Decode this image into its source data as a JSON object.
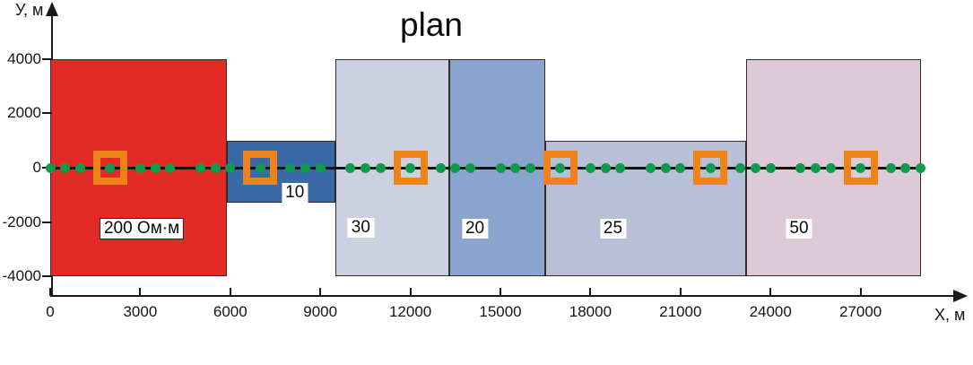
{
  "figure": {
    "title": "plan"
  },
  "chart_data": {
    "type": "zone-plan",
    "title": "plan",
    "xlabel": "X, м",
    "ylabel": "У, м",
    "xlim": [
      0,
      29500
    ],
    "ylim": [
      -4000,
      4000
    ],
    "grid": false,
    "x_ticks": [
      0,
      3000,
      6000,
      9000,
      12000,
      15000,
      18000,
      21000,
      24000,
      27000
    ],
    "y_ticks": [
      4000,
      2000,
      0,
      -2000,
      -4000
    ],
    "zones": [
      {
        "label": "200 Ом·м",
        "resistivity_ohm_m": 200,
        "x_range_m": [
          0,
          5900
        ],
        "y_range_m": [
          -4000,
          4000
        ],
        "color": "#e22b26",
        "label_x_m": 3050,
        "label_y_m": -2250,
        "label_border": true
      },
      {
        "label": "10",
        "resistivity_ohm_m": 10,
        "x_range_m": [
          5900,
          9500
        ],
        "y_range_m": [
          -1300,
          1000
        ],
        "color": "#3a69a7",
        "label_x_m": 8150,
        "label_y_m": -920,
        "label_border": false
      },
      {
        "label": "30",
        "resistivity_ohm_m": 30,
        "x_range_m": [
          9500,
          13300
        ],
        "y_range_m": [
          -4000,
          4000
        ],
        "color": "#cbd1e0",
        "label_x_m": 10350,
        "label_y_m": -2200,
        "label_border": false
      },
      {
        "label": "20",
        "resistivity_ohm_m": 20,
        "x_range_m": [
          13300,
          16500
        ],
        "y_range_m": [
          -4000,
          4000
        ],
        "color": "#8ba3cf",
        "label_x_m": 14150,
        "label_y_m": -2250,
        "label_border": false
      },
      {
        "label": "25",
        "resistivity_ohm_m": 25,
        "x_range_m": [
          16500,
          23200
        ],
        "y_range_m": [
          -4000,
          1000
        ],
        "color": "#b7c0d6",
        "label_x_m": 18750,
        "label_y_m": -2250,
        "label_border": false
      },
      {
        "label": "50",
        "resistivity_ohm_m": 50,
        "x_range_m": [
          23200,
          29000
        ],
        "y_range_m": [
          -4000,
          4000
        ],
        "color": "#ddcad7",
        "label_x_m": 24950,
        "label_y_m": -2250,
        "label_border": false
      }
    ],
    "profile_line": {
      "y_m": 0,
      "x_start_m": 0,
      "x_end_m": 29000
    },
    "station_dots_x_m": [
      0,
      500,
      1000,
      2000,
      3000,
      3500,
      4000,
      5000,
      5500,
      6000,
      7000,
      8000,
      8500,
      9000,
      10000,
      10500,
      11000,
      12000,
      13000,
      13500,
      14000,
      15000,
      15500,
      16000,
      17000,
      18000,
      18500,
      19000,
      20000,
      20500,
      21000,
      22000,
      23000,
      23500,
      24000,
      25000,
      25500,
      26000,
      27000,
      28000,
      28500,
      29000
    ],
    "base_station_squares_x_m": [
      2000,
      7000,
      12000,
      17000,
      22000,
      27000
    ],
    "colors": {
      "station_dot": "#109a4d",
      "base_square": "#ee8418",
      "axis": "#1a1a1a"
    }
  }
}
